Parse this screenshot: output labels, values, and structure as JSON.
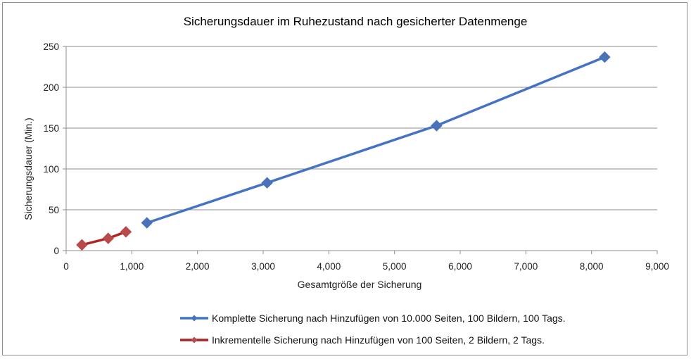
{
  "chart_data": {
    "type": "line",
    "title": "Sicherungsdauer im Ruhezustand nach gesicherter Datenmenge",
    "xlabel": "Gesamtgröße der Sicherung",
    "ylabel": "Sicherungsdauer (Min.)",
    "xlim": [
      0,
      9000
    ],
    "ylim": [
      0,
      250
    ],
    "xticks": [
      0,
      1000,
      2000,
      3000,
      4000,
      5000,
      6000,
      7000,
      8000,
      9000
    ],
    "xtick_labels": [
      "0",
      "1,000",
      "2,000",
      "3,000",
      "4,000",
      "5,000",
      "6,000",
      "7,000",
      "8,000",
      "9,000"
    ],
    "yticks": [
      0,
      50,
      100,
      150,
      200,
      250
    ],
    "ytick_labels": [
      "0",
      "50",
      "100",
      "150",
      "200",
      "250"
    ],
    "grid": "horizontal",
    "legend_position": "bottom",
    "series": [
      {
        "name": "Komplette Sicherung nach Hinzufügen von 10.000 Seiten, 100 Bildern, 100 Tags.",
        "color": "#4472c4",
        "marker_color": "#4a72b8",
        "x": [
          1230,
          3060,
          5640,
          8200
        ],
        "y": [
          34,
          83,
          153,
          237
        ]
      },
      {
        "name": "Inkrementelle Sicherung nach Hinzufügen von 100 Seiten, 2 Bildern, 2 Tags.",
        "color": "#b22222",
        "marker_color": "#b84a4a",
        "x": [
          240,
          640,
          910
        ],
        "y": [
          7,
          15,
          23
        ]
      }
    ]
  }
}
